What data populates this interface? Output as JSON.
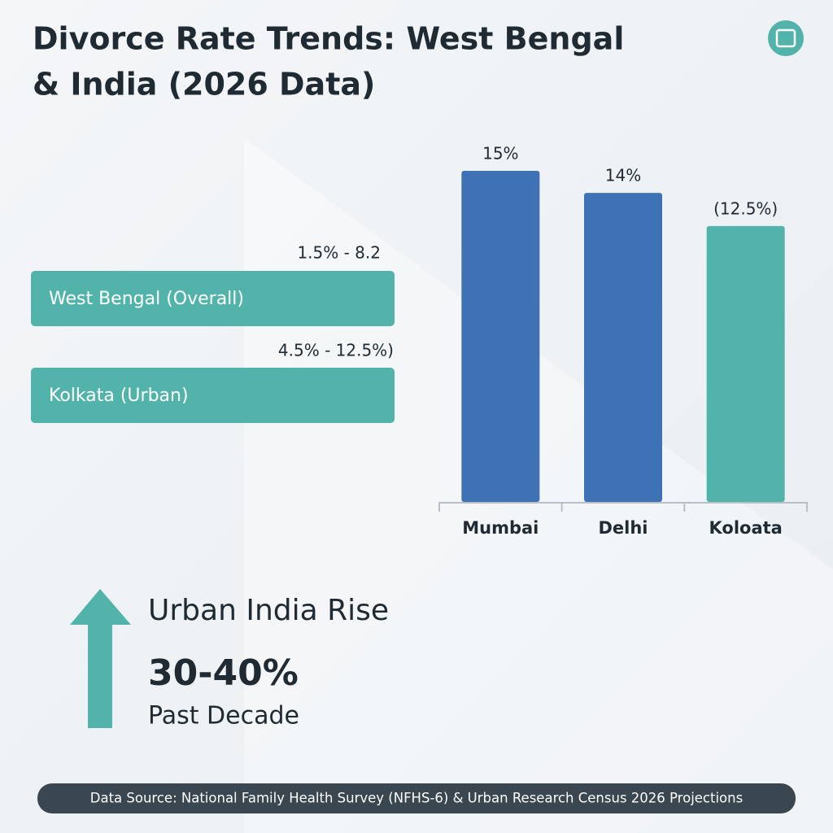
{
  "header": {
    "title_lines": [
      "Divorce Rate Trends: West Bengal",
      "& India (2026 Data)"
    ]
  },
  "ranges": [
    {
      "label": "West Bengal (Overall)",
      "range": "1.5% - 8.2"
    },
    {
      "label": "Kolkata (Urban)",
      "range": "4.5% - 12.5%)"
    }
  ],
  "chart_data": {
    "type": "bar",
    "categories": [
      "Mumbai",
      "Delhi",
      "Koloata"
    ],
    "values": [
      15,
      14,
      12.5
    ],
    "value_labels": [
      "15%",
      "14%",
      "(12.5%)"
    ],
    "colors": [
      "#3f72b5",
      "#3f72b5",
      "#52b3aa"
    ]
  },
  "highlight": {
    "title": "Urban India Rise",
    "value": "30-40%",
    "caption": "Past Decade"
  },
  "footer": {
    "source": "Data Source: National Family Health Survey (NFHS-6) & Urban Research Census 2026 Projections"
  }
}
